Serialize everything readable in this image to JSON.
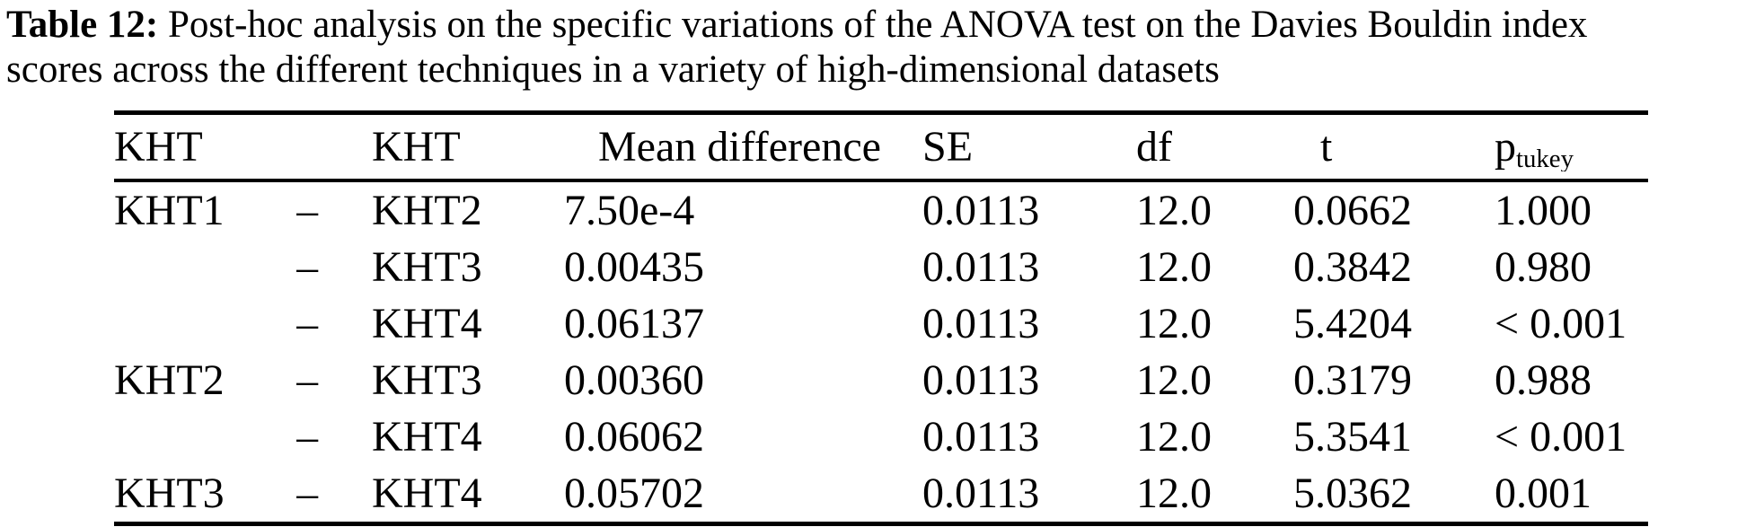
{
  "caption": {
    "label": "Table 12:",
    "line1_rest": " Post-hoc analysis on the specific variations of the ANOVA test on the Davies Bouldin index",
    "line2": "scores across the different techniques in a variety of high-dimensional datasets"
  },
  "table": {
    "headers": {
      "group": "KHT",
      "dash": "",
      "versus": "KHT",
      "mean_difference": "Mean difference",
      "se": "SE",
      "df": "df",
      "t": "t",
      "p_base": "p",
      "p_sub": "tukey"
    },
    "rows": [
      {
        "group": "KHT1",
        "dash": "–",
        "versus": "KHT2",
        "mean_difference": "7.50e-4",
        "se": "0.0113",
        "df": "12.0",
        "t": "0.0662",
        "p": "1.000"
      },
      {
        "group": "",
        "dash": "–",
        "versus": "KHT3",
        "mean_difference": "0.00435",
        "se": "0.0113",
        "df": "12.0",
        "t": "0.3842",
        "p": "0.980"
      },
      {
        "group": "",
        "dash": "–",
        "versus": "KHT4",
        "mean_difference": "0.06137",
        "se": "0.0113",
        "df": "12.0",
        "t": "5.4204",
        "p": "< 0.001"
      },
      {
        "group": "KHT2",
        "dash": "–",
        "versus": "KHT3",
        "mean_difference": "0.00360",
        "se": "0.0113",
        "df": "12.0",
        "t": "0.3179",
        "p": "0.988"
      },
      {
        "group": "",
        "dash": "–",
        "versus": "KHT4",
        "mean_difference": "0.06062",
        "se": "0.0113",
        "df": "12.0",
        "t": "5.3541",
        "p": "< 0.001"
      },
      {
        "group": "KHT3",
        "dash": "–",
        "versus": "KHT4",
        "mean_difference": "0.05702",
        "se": "0.0113",
        "df": "12.0",
        "t": "5.0362",
        "p": "0.001"
      }
    ]
  }
}
